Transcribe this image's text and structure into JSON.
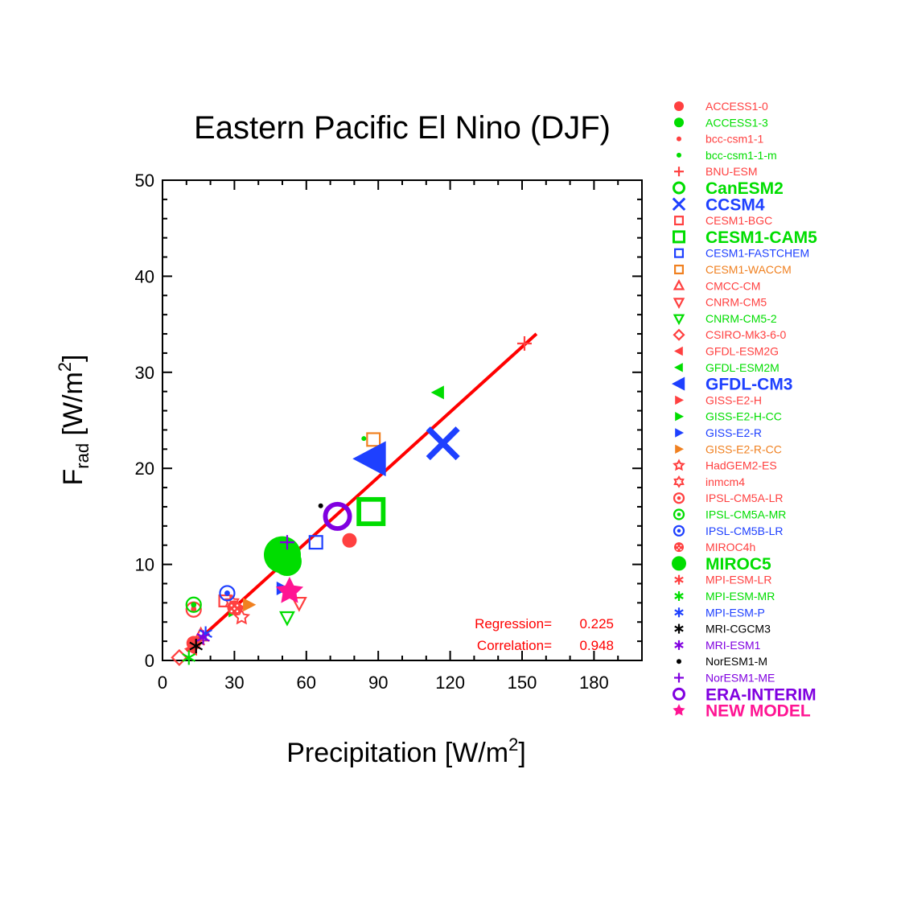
{
  "chart_data": {
    "type": "scatter",
    "title": "Eastern Pacific  El Nino (DJF)",
    "xlabel": {
      "main": "Precipitation [W/m",
      "sup": "2",
      "tail": "]"
    },
    "ylabel": {
      "main": "F",
      "sub": "rad",
      "mid": " [W/m",
      "sup": "2",
      "tail": "]"
    },
    "xlim": [
      0,
      200
    ],
    "ylim": [
      0,
      50
    ],
    "x_ticks": [
      0,
      30,
      60,
      90,
      120,
      150,
      180
    ],
    "y_ticks": [
      0,
      10,
      20,
      30,
      40,
      50
    ],
    "grid": false,
    "legend_position": "right",
    "regression_line": {
      "x": [
        10,
        156
      ],
      "y": [
        1.0,
        34.0
      ],
      "color": "#ff0000"
    },
    "stats": [
      {
        "label": "Regression=",
        "value": "0.225"
      },
      {
        "label": "Correlation=",
        "value": "0.948"
      }
    ],
    "series": [
      {
        "name": "ACCESS1-0",
        "color": "#ff4040",
        "marker": "dot",
        "size": "m",
        "bold": false,
        "points": [
          [
            78,
            12.5
          ],
          [
            13,
            1.8
          ]
        ]
      },
      {
        "name": "ACCESS1-3",
        "color": "#00dd00",
        "marker": "dot",
        "size": "m",
        "bold": false,
        "points": [
          [
            47,
            10.5
          ]
        ]
      },
      {
        "name": "bcc-csm1-1",
        "color": "#ff4040",
        "marker": "dot",
        "size": "xs",
        "bold": false,
        "points": [
          [
            13,
            5.5
          ]
        ]
      },
      {
        "name": "bcc-csm1-1-m",
        "color": "#00dd00",
        "marker": "dot",
        "size": "xs",
        "bold": false,
        "points": [
          [
            84,
            23.1
          ]
        ]
      },
      {
        "name": "BNU-ESM",
        "color": "#ff4040",
        "marker": "plus",
        "size": "m",
        "bold": false,
        "points": [
          [
            151,
            33.0
          ]
        ]
      },
      {
        "name": "CanESM2",
        "color": "#00dd00",
        "marker": "circle",
        "size": "l",
        "bold": true,
        "points": [
          [
            52,
            10.3
          ]
        ]
      },
      {
        "name": "CCSM4",
        "color": "#1e40ff",
        "marker": "x",
        "size": "xl",
        "bold": true,
        "points": [
          [
            117,
            22.6
          ]
        ]
      },
      {
        "name": "CESM1-BGC",
        "color": "#ff4040",
        "marker": "square",
        "size": "s",
        "bold": false,
        "points": [
          [
            26,
            6.2
          ]
        ]
      },
      {
        "name": "CESM1-CAM5",
        "color": "#00dd00",
        "marker": "square",
        "size": "l",
        "bold": true,
        "points": [
          [
            87,
            15.5
          ]
        ]
      },
      {
        "name": "CESM1-FASTCHEM",
        "color": "#1e40ff",
        "marker": "square",
        "size": "m",
        "bold": false,
        "points": [
          [
            64,
            12.3
          ]
        ]
      },
      {
        "name": "CESM1-WACCM",
        "color": "#f08020",
        "marker": "square",
        "size": "m",
        "bold": false,
        "points": [
          [
            88,
            23.0
          ]
        ]
      },
      {
        "name": "CMCC-CM",
        "color": "#ff4040",
        "marker": "triangle",
        "size": "m",
        "bold": false,
        "points": [
          [
            16,
            2.6
          ]
        ]
      },
      {
        "name": "CNRM-CM5",
        "color": "#ff4040",
        "marker": "tri-down",
        "size": "m",
        "bold": false,
        "points": [
          [
            57,
            6.0
          ]
        ]
      },
      {
        "name": "CNRM-CM5-2",
        "color": "#00dd00",
        "marker": "tri-down",
        "size": "m",
        "bold": false,
        "points": [
          [
            52,
            4.5
          ]
        ]
      },
      {
        "name": "CSIRO-Mk3-6-0",
        "color": "#ff4040",
        "marker": "diamond",
        "size": "m",
        "bold": false,
        "points": [
          [
            7,
            0.3
          ]
        ]
      },
      {
        "name": "GFDL-ESM2G",
        "color": "#ff4040",
        "marker": "tri-left",
        "size": "m",
        "bold": false,
        "points": [
          [
            12,
            1.2
          ]
        ]
      },
      {
        "name": "GFDL-ESM2M",
        "color": "#00dd00",
        "marker": "tri-left",
        "size": "m",
        "bold": false,
        "points": [
          [
            115,
            27.9
          ]
        ]
      },
      {
        "name": "GFDL-CM3",
        "color": "#1e40ff",
        "marker": "tri-left",
        "size": "xl",
        "bold": true,
        "points": [
          [
            87,
            21.0
          ]
        ]
      },
      {
        "name": "GISS-E2-H",
        "color": "#ff4040",
        "marker": "tri-right",
        "size": "m",
        "bold": false,
        "points": [
          [
            32,
            5.5
          ]
        ]
      },
      {
        "name": "GISS-E2-H-CC",
        "color": "#00dd00",
        "marker": "tri-right",
        "size": "m",
        "bold": false,
        "points": [
          [
            30,
            5.2
          ]
        ]
      },
      {
        "name": "GISS-E2-R",
        "color": "#1e40ff",
        "marker": "tri-right",
        "size": "m",
        "bold": false,
        "points": [
          [
            50,
            7.5
          ]
        ]
      },
      {
        "name": "GISS-E2-R-CC",
        "color": "#f08020",
        "marker": "tri-right",
        "size": "m",
        "bold": false,
        "points": [
          [
            36,
            5.8
          ]
        ]
      },
      {
        "name": "HadGEM2-ES",
        "color": "#ff4040",
        "marker": "star",
        "size": "m",
        "bold": false,
        "points": [
          [
            33,
            4.5
          ]
        ]
      },
      {
        "name": "inmcm4",
        "color": "#ff4040",
        "marker": "hexstar",
        "size": "m",
        "bold": false,
        "points": [
          [
            29,
            6.0
          ]
        ]
      },
      {
        "name": "IPSL-CM5A-LR",
        "color": "#ff4040",
        "marker": "bullseye",
        "size": "m",
        "bold": false,
        "points": [
          [
            13,
            5.3
          ]
        ]
      },
      {
        "name": "IPSL-CM5A-MR",
        "color": "#00dd00",
        "marker": "bullseye",
        "size": "m",
        "bold": false,
        "points": [
          [
            13,
            5.8
          ]
        ]
      },
      {
        "name": "IPSL-CM5B-LR",
        "color": "#1e40ff",
        "marker": "bullseye",
        "size": "m",
        "bold": false,
        "points": [
          [
            27,
            7.0
          ]
        ]
      },
      {
        "name": "MIROC4h",
        "color": "#ff4040",
        "marker": "dotted-circle",
        "size": "m",
        "bold": false,
        "points": [
          [
            30,
            5.5
          ]
        ]
      },
      {
        "name": "MIROC5",
        "color": "#00dd00",
        "marker": "dot",
        "size": "xl",
        "bold": true,
        "points": [
          [
            50,
            11.0
          ]
        ]
      },
      {
        "name": "MPI-ESM-LR",
        "color": "#ff4040",
        "marker": "asterisk",
        "size": "m",
        "bold": false,
        "points": [
          [
            15,
            2.0
          ]
        ]
      },
      {
        "name": "MPI-ESM-MR",
        "color": "#00dd00",
        "marker": "asterisk",
        "size": "m",
        "bold": false,
        "points": [
          [
            11,
            0.3
          ]
        ]
      },
      {
        "name": "MPI-ESM-P",
        "color": "#1e40ff",
        "marker": "asterisk",
        "size": "m",
        "bold": false,
        "points": [
          [
            18,
            2.8
          ]
        ]
      },
      {
        "name": "MRI-CGCM3",
        "color": "#000000",
        "marker": "asterisk",
        "size": "m",
        "bold": false,
        "points": [
          [
            14,
            1.5
          ]
        ]
      },
      {
        "name": "MRI-ESM1",
        "color": "#8000e0",
        "marker": "asterisk",
        "size": "m",
        "bold": false,
        "points": [
          [
            17,
            2.4
          ]
        ]
      },
      {
        "name": "NorESM1-M",
        "color": "#000000",
        "marker": "dot",
        "size": "xs",
        "bold": false,
        "points": [
          [
            66,
            16.1
          ]
        ]
      },
      {
        "name": "NorESM1-ME",
        "color": "#8000e0",
        "marker": "plus",
        "size": "m",
        "bold": false,
        "points": [
          [
            52,
            12.3
          ]
        ]
      },
      {
        "name": "ERA-INTERIM",
        "color": "#8000e0",
        "marker": "circle",
        "size": "l",
        "bold": true,
        "points": [
          [
            73,
            15.0
          ]
        ]
      },
      {
        "name": "NEW MODEL",
        "color": "#ff1493",
        "marker": "star",
        "size": "l",
        "bold": true,
        "points": [
          [
            53,
            7.2
          ]
        ]
      }
    ]
  }
}
